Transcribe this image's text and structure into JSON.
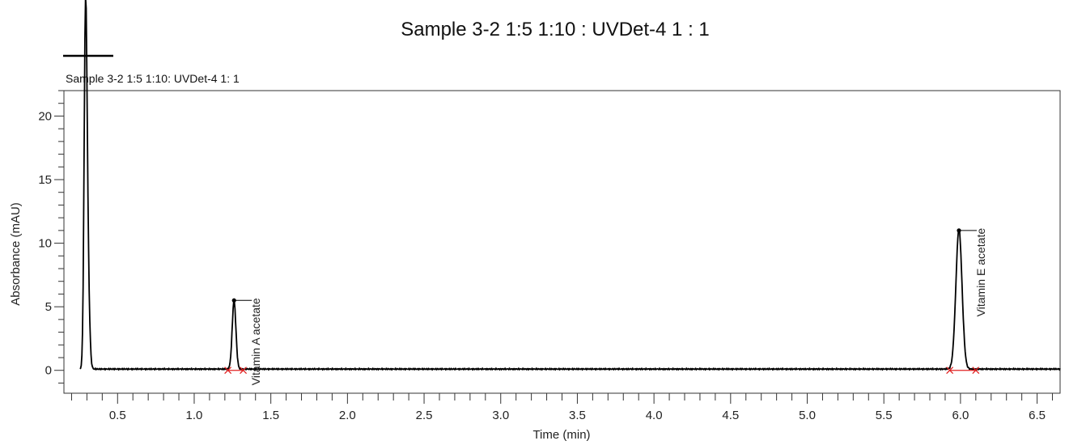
{
  "chart_data": {
    "type": "line",
    "title": "Sample 3-2  1:5 1:10 : UVDet-4 1 : 1",
    "legend": {
      "placement": "top-left",
      "entries": [
        {
          "label": "Sample 3-2  1:5 1:10: UVDet-4 1: 1",
          "color": "#000000"
        }
      ]
    },
    "xlabel": "Time (min)",
    "ylabel": "Absorbance (mAU)",
    "xlim": [
      0.15,
      6.65
    ],
    "ylim": [
      -1.8,
      22
    ],
    "x_ticks": [
      0.5,
      1.0,
      1.5,
      2.0,
      2.5,
      3.0,
      3.5,
      4.0,
      4.5,
      5.0,
      5.5,
      6.0,
      6.5
    ],
    "x_tick_labels": [
      "0.5",
      "1.0",
      "1.5",
      "2.0",
      "2.5",
      "3.0",
      "3.5",
      "4.0",
      "4.5",
      "5.0",
      "5.5",
      "6.0",
      "6.5"
    ],
    "x_minor_step": 0.1,
    "y_ticks": [
      0,
      5,
      10,
      15,
      20
    ],
    "y_tick_labels": [
      "0",
      "5",
      "10",
      "15",
      "20"
    ],
    "y_minor_step": 1,
    "grid": false,
    "series": [
      {
        "name": "Sample 3-2  1:5 1:10: UVDet-4 1: 1",
        "color": "#000000",
        "baseline": 0.1,
        "peaks": [
          {
            "t": 0.29,
            "height": 21.5,
            "width": 0.009
          },
          {
            "t": 0.301,
            "height": 11.2,
            "width": 0.012
          },
          {
            "t": 1.26,
            "height": 5.4,
            "width": 0.012
          },
          {
            "t": 5.99,
            "height": 11.0,
            "width": 0.02
          }
        ]
      }
    ],
    "annotations": [
      {
        "text": "Vitamin A acetate",
        "x": 1.26,
        "y": 5.5,
        "baseline_start": 1.22,
        "baseline_end": 1.32
      },
      {
        "text": "Vitamin E acetate",
        "x": 5.99,
        "y": 11.0,
        "baseline_start": 5.93,
        "baseline_end": 6.1
      }
    ],
    "colors": {
      "trace": "#000000",
      "baseline_marker": "#e02020"
    }
  }
}
